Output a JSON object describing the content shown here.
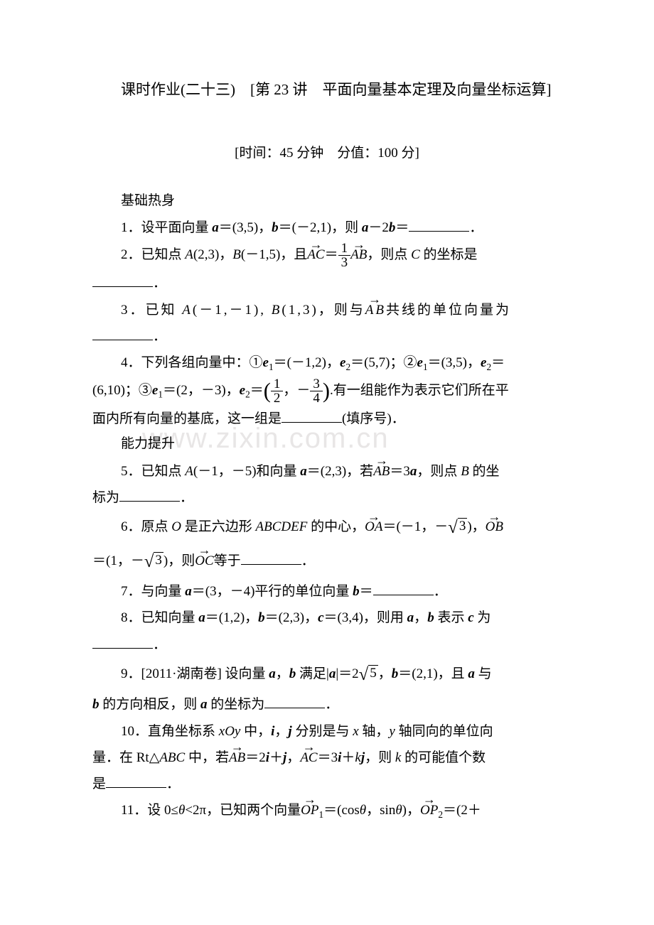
{
  "title_prefix": "课时作业(二十三)　[第 23 讲　",
  "title_main": "平面向量基本定理及向量坐标运算]",
  "subtitle": "[时间：45 分钟　分值：100 分]",
  "sections": {
    "s1": "基础热身",
    "s2": "能力提升"
  },
  "problems": {
    "p1_a": "1．设平面向量 ",
    "p1_b": "＝(3,5)，",
    "p1_c": "＝(－2,1)，则 ",
    "p1_d": "－2",
    "p1_e": "＝",
    "p1_f": "．",
    "p2_a": "2．已知点 ",
    "p2_A": "A",
    "p2_b": "(2,3)，",
    "p2_B": "B",
    "p2_c": "(－1,5)，且",
    "p2_d": "＝",
    "p2_e": "，则点 ",
    "p2_C": "C",
    "p2_f": " 的坐标是",
    "p2_g": "．",
    "p3_a": "3．已知 ",
    "p3_A": "A",
    "p3_b": "(－1,－1), ",
    "p3_B": "B",
    "p3_c": "(1,3)，则与",
    "p3_d": "共线的单位向量为",
    "p3_e": "．",
    "p4_a": "4．下列各组向量中：①",
    "p4_b": "＝(－1,2)，",
    "p4_c": "＝(5,7)；②",
    "p4_d": "＝(3,5)，",
    "p4_e": "＝",
    "p4_f": "(6,10)；③",
    "p4_g": "＝(2，－3)，",
    "p4_h": "＝",
    "p4_i": "，－",
    "p4_j": ".有一组能作为表示它们所在平",
    "p4_k": "面内所有向量的基底，这一组是",
    "p4_l": "(填序号)．",
    "p5_a": "5．已知点 ",
    "p5_A": "A",
    "p5_b": "(－1，－5)和向量 ",
    "p5_c": "＝(2,3)，若",
    "p5_d": "＝3",
    "p5_e": "，则点 ",
    "p5_B": "B",
    "p5_f": " 的坐",
    "p5_g": "标为",
    "p5_h": "．",
    "p6_a": "6．原点 ",
    "p6_O": "O",
    "p6_b": " 是正六边形 ",
    "p6_hex": "ABCDEF",
    "p6_c": " 的中心，",
    "p6_d": "＝(－1，－",
    "p6_e": ")，",
    "p6_f": "＝(1，－",
    "p6_g": ")，则",
    "p6_h": "等于",
    "p6_i": "．",
    "p7_a": "7．与向量 ",
    "p7_b": "＝(3，－4)平行的单位向量 ",
    "p7_c": "＝",
    "p7_d": "．",
    "p8_a": "8．已知向量 ",
    "p8_b": "＝(1,2)，",
    "p8_c": "＝(2,3)，",
    "p8_d": "＝(3,4)，则用 ",
    "p8_e": "，",
    "p8_f": " 表示 ",
    "p8_g": " 为",
    "p8_h": "．",
    "p9_a": "9．[2011·湖南卷] 设向量 ",
    "p9_b": "，",
    "p9_c": " 满足|",
    "p9_d": "|＝2",
    "p9_e": "，",
    "p9_f": "＝(2,1)，且 ",
    "p9_g": " 与",
    "p9_h": " 的方向相反，则 ",
    "p9_i": " 的坐标为",
    "p9_j": "．",
    "p10_a": "10．直角坐标系 ",
    "p10_xoy": "xOy",
    "p10_b": " 中，",
    "p10_c": "，",
    "p10_d": " 分别是与 ",
    "p10_x": "x",
    "p10_e": " 轴，",
    "p10_y": "y",
    "p10_f": " 轴同向的单位向",
    "p10_g": "量．在 Rt△",
    "p10_abc": "ABC",
    "p10_h": " 中，若",
    "p10_i": "＝2",
    "p10_j": "＋",
    "p10_k": "，",
    "p10_l": "＝3",
    "p10_m": "＋",
    "p10_n": "，则 ",
    "p10_kk": "k",
    "p10_o": " 的可能值个数",
    "p10_p": "是",
    "p10_q": "．",
    "p11_a": "11．设 0≤",
    "p11_theta": "θ",
    "p11_b": "<2π，已知两个向量",
    "p11_c": "＝",
    "p11_d": "cos",
    "p11_e": "，sin",
    "p11_f": "，",
    "p11_OP2": "OP",
    "p11_g": "＝(2＋",
    "frac_1_3_num": "1",
    "frac_1_3_den": "3",
    "frac_1_2_num": "1",
    "frac_1_2_den": "2",
    "frac_3_4_num": "3",
    "frac_3_4_den": "4",
    "sqrt3": "3",
    "sqrt5": "5",
    "vec_AB": "AB",
    "vec_AC": "AC",
    "vec_OA": "OA",
    "vec_OB": "OB",
    "vec_OC": "OC",
    "vec_OP": "OP",
    "sym_a": "a",
    "sym_b": "b",
    "sym_c": "c",
    "sym_e": "e",
    "sym_i": "i",
    "sym_j": "j",
    "sym_k": "k",
    "sub1": "1",
    "sub2": "2",
    "lparen": "(",
    "rparen": ")"
  },
  "watermark": "www.zixin.com.cn",
  "colors": {
    "text": "#000000",
    "background": "#ffffff",
    "watermark": "#e8e6e6"
  },
  "typography": {
    "body_fontsize_pt": 15,
    "title_fontsize_pt": 16,
    "font_family": "SimSun"
  }
}
